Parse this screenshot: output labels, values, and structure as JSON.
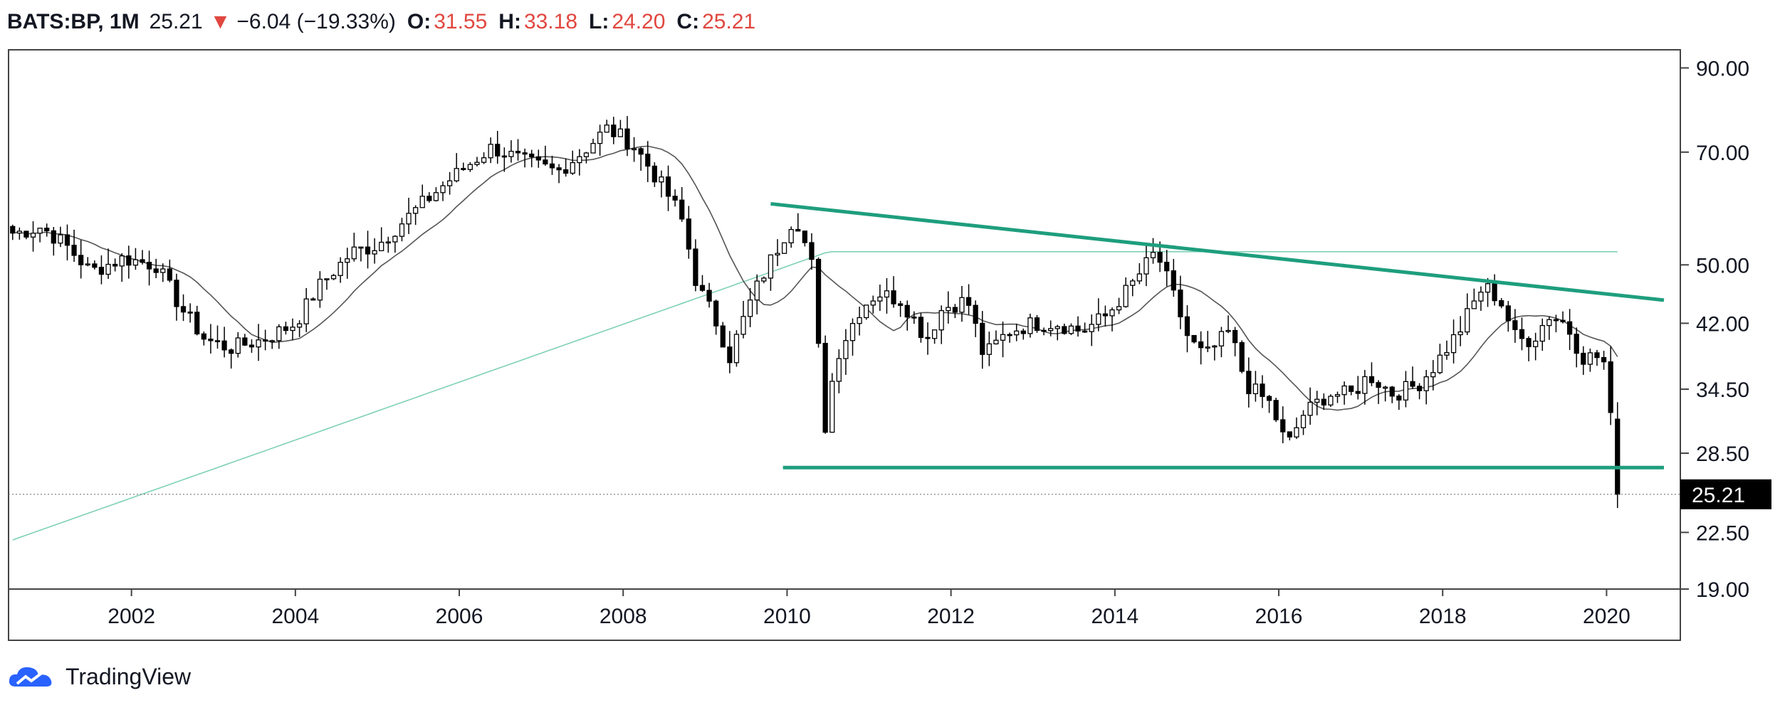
{
  "header": {
    "symbol": "BATS:BP, 1M",
    "last": "25.21",
    "arrow": "▼",
    "change": "−6.04 (−19.33%)",
    "o_label": "O:",
    "o": "31.55",
    "h_label": "H:",
    "h": "33.18",
    "l_label": "L:",
    "l": "24.20",
    "c_label": "C:",
    "c": "25.21"
  },
  "footer": {
    "brand": "TradingView",
    "logo_icon": "tradingview-cloud-icon"
  },
  "colors": {
    "up": "#ffffff",
    "down": "#000000",
    "wick": "#000000",
    "trend": "#1e9e7e",
    "ma_short": "#555555",
    "ma_long": "#7fd1b4",
    "price_label": "#000000"
  },
  "chart_data": {
    "type": "candlestick",
    "interval": "1M",
    "scale": "log",
    "ylim": [
      19,
      95
    ],
    "xlim": [
      2000.5,
      2020.9
    ],
    "y_ticks": [
      "90.00",
      "70.00",
      "50.00",
      "42.00",
      "34.50",
      "28.50",
      "22.50",
      "19.00"
    ],
    "y_tick_values": [
      90,
      70,
      50,
      42,
      34.5,
      28.5,
      22.5,
      19
    ],
    "x_ticks": [
      "2002",
      "2004",
      "2006",
      "2008",
      "2010",
      "2012",
      "2014",
      "2016",
      "2018",
      "2020"
    ],
    "x_tick_values": [
      2002,
      2004,
      2006,
      2008,
      2010,
      2012,
      2014,
      2016,
      2018,
      2020
    ],
    "last_price_label": "25.21",
    "last_price": 25.21,
    "price_anchors": [
      [
        2000.6,
        55
      ],
      [
        2000.9,
        56
      ],
      [
        2001.2,
        53
      ],
      [
        2001.5,
        49
      ],
      [
        2001.9,
        51
      ],
      [
        2002.3,
        50
      ],
      [
        2002.6,
        44
      ],
      [
        2002.9,
        40
      ],
      [
        2003.2,
        39
      ],
      [
        2003.6,
        40
      ],
      [
        2004.0,
        42
      ],
      [
        2004.3,
        47
      ],
      [
        2004.7,
        52
      ],
      [
        2005.0,
        53
      ],
      [
        2005.4,
        58
      ],
      [
        2005.7,
        62
      ],
      [
        2006.0,
        66
      ],
      [
        2006.4,
        71
      ],
      [
        2006.8,
        68
      ],
      [
        2007.2,
        66
      ],
      [
        2007.5,
        70
      ],
      [
        2007.8,
        75
      ],
      [
        2008.1,
        72
      ],
      [
        2008.4,
        65
      ],
      [
        2008.7,
        58
      ],
      [
        2008.9,
        47
      ],
      [
        2009.1,
        43
      ],
      [
        2009.3,
        38
      ],
      [
        2009.6,
        46
      ],
      [
        2009.9,
        53
      ],
      [
        2010.1,
        58
      ],
      [
        2010.3,
        50
      ],
      [
        2010.45,
        30
      ],
      [
        2010.6,
        38
      ],
      [
        2010.9,
        44
      ],
      [
        2011.1,
        46
      ],
      [
        2011.4,
        45
      ],
      [
        2011.7,
        40
      ],
      [
        2011.9,
        44
      ],
      [
        2012.2,
        45
      ],
      [
        2012.4,
        38
      ],
      [
        2012.7,
        41
      ],
      [
        2013.0,
        42
      ],
      [
        2013.3,
        42
      ],
      [
        2013.6,
        41
      ],
      [
        2013.9,
        43
      ],
      [
        2014.2,
        47
      ],
      [
        2014.5,
        52
      ],
      [
        2014.7,
        46
      ],
      [
        2014.9,
        40
      ],
      [
        2015.1,
        38
      ],
      [
        2015.4,
        41
      ],
      [
        2015.6,
        35
      ],
      [
        2015.9,
        33
      ],
      [
        2016.1,
        29
      ],
      [
        2016.3,
        32
      ],
      [
        2016.6,
        34
      ],
      [
        2016.9,
        34
      ],
      [
        2017.1,
        36
      ],
      [
        2017.4,
        34
      ],
      [
        2017.7,
        35
      ],
      [
        2017.9,
        37
      ],
      [
        2018.2,
        41
      ],
      [
        2018.5,
        47
      ],
      [
        2018.7,
        45
      ],
      [
        2018.9,
        40
      ],
      [
        2019.1,
        40
      ],
      [
        2019.3,
        43
      ],
      [
        2019.5,
        42
      ],
      [
        2019.7,
        38
      ],
      [
        2019.9,
        38
      ],
      [
        2020.0,
        37
      ],
      [
        2020.05,
        31.55
      ],
      [
        2020.13,
        25.21
      ]
    ],
    "trendlines": [
      {
        "name": "resistance",
        "x": [
          2009.8,
          2020.7
        ],
        "y": [
          60,
          45
        ]
      },
      {
        "name": "support",
        "x": [
          2009.95,
          2020.7
        ],
        "y": [
          27.3,
          27.3
        ]
      }
    ],
    "ma_short_window": 12,
    "ma_long_window": 60
  }
}
